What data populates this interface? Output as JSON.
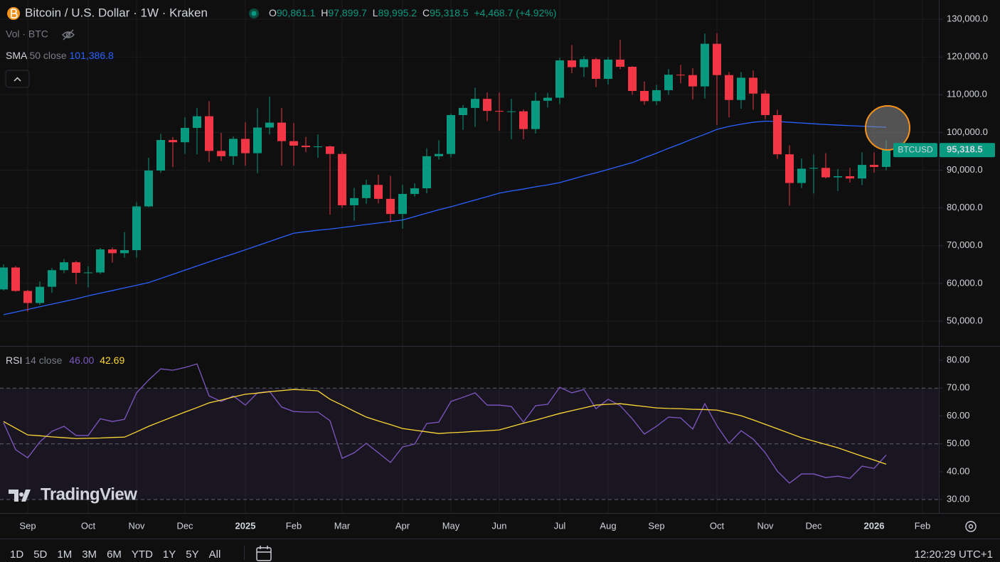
{
  "header": {
    "symbol": "Bitcoin / U.S. Dollar · 1W · Kraken",
    "ohlc": [
      {
        "key": "O",
        "label": "90,861.1"
      },
      {
        "key": "H",
        "label": "97,899.7"
      },
      {
        "key": "L",
        "label": "89,995.2"
      },
      {
        "key": "C",
        "label": "95,318.5"
      }
    ],
    "change": "+4,468.7 (+4.92%)",
    "volume": "Vol · BTC"
  },
  "brand": "TradingView",
  "toolbar": {
    "ranges": [
      "1D",
      "5D",
      "1M",
      "3M",
      "6M",
      "YTD",
      "1Y",
      "5Y",
      "All"
    ],
    "clock": "12:20:29 UTC+1"
  },
  "chart_data": [
    {
      "type": "candlestick",
      "title": "Bitcoin / U.S. Dollar · 1W · Kraken",
      "categories": [
        null,
        null,
        "Sep",
        null,
        null,
        null,
        null,
        "Oct",
        null,
        null,
        null,
        "Nov",
        null,
        null,
        null,
        "Dec",
        null,
        null,
        null,
        null,
        "2025",
        null,
        null,
        null,
        "Feb",
        null,
        null,
        null,
        "Mar",
        null,
        null,
        null,
        null,
        "Apr",
        null,
        null,
        null,
        "May",
        null,
        null,
        null,
        "Jun",
        null,
        null,
        null,
        null,
        "Jul",
        null,
        null,
        null,
        "Aug",
        null,
        null,
        null,
        "Sep",
        null,
        null,
        null,
        null,
        "Oct",
        null,
        null,
        null,
        "Nov",
        null,
        null,
        null,
        "Dec",
        null,
        null,
        null,
        null,
        "2026",
        null,
        null,
        null,
        "Feb"
      ],
      "series": [
        {
          "name": "BTCUSD",
          "up_color": "#089981",
          "down_color": "#f23645",
          "last_label": "95,318.5",
          "open": [
            58400,
            64200,
            58000,
            54800,
            59100,
            63500,
            65600,
            62800,
            62900,
            69000,
            68000,
            68800,
            80400,
            89900,
            98000,
            97400,
            101200,
            104300,
            95100,
            93700,
            98300,
            94500,
            101300,
            102600,
            97700,
            96500,
            96100,
            96300,
            94300,
            80700,
            82600,
            86100,
            82400,
            78400,
            83700,
            85200,
            93700,
            94300,
            104600,
            106500,
            108900,
            105700,
            105500,
            105600,
            100900,
            108400,
            109200,
            119100,
            117300,
            119400,
            114200,
            119300,
            117400,
            111000,
            108300,
            111200,
            115300,
            115200,
            112200,
            123500,
            115200,
            108600,
            114500,
            110300,
            104600,
            94200,
            86600,
            90400,
            90600,
            88100,
            88400,
            87800,
            91400,
            90861.1,
            null,
            null,
            null
          ],
          "high": [
            65000,
            64600,
            58300,
            60500,
            64100,
            66500,
            66000,
            64500,
            69400,
            69500,
            73600,
            81500,
            93300,
            99600,
            98800,
            104000,
            106500,
            108300,
            99900,
            99000,
            102700,
            106400,
            109500,
            106500,
            102500,
            98800,
            99500,
            96500,
            95000,
            85300,
            87500,
            88800,
            88500,
            86100,
            86500,
            95800,
            97900,
            105000,
            107300,
            111900,
            110600,
            110600,
            108900,
            106100,
            110600,
            110500,
            119800,
            123200,
            120200,
            119800,
            120000,
            124500,
            117600,
            113500,
            112600,
            116800,
            117900,
            117000,
            126200,
            126300,
            116000,
            116000,
            116400,
            111200,
            106000,
            96600,
            93100,
            94200,
            94500,
            90300,
            90600,
            94700,
            94700,
            97899.7,
            null,
            null,
            null
          ],
          "low": [
            58100,
            57800,
            52500,
            54300,
            57500,
            62700,
            59800,
            58900,
            62500,
            65500,
            66800,
            66800,
            80200,
            89300,
            90800,
            94300,
            94200,
            92200,
            92400,
            91400,
            91200,
            89200,
            99500,
            91200,
            91200,
            94800,
            93300,
            78200,
            80000,
            76600,
            81100,
            81200,
            76200,
            74500,
            83000,
            83900,
            92800,
            93400,
            100700,
            101500,
            103000,
            100400,
            98200,
            98200,
            99700,
            106600,
            107500,
            115700,
            114700,
            112000,
            112700,
            116800,
            110000,
            107300,
            107300,
            110000,
            113000,
            108700,
            109000,
            102000,
            104000,
            106300,
            106000,
            103500,
            93000,
            80600,
            85300,
            83800,
            87800,
            84500,
            86700,
            86000,
            89300,
            89995.2,
            null,
            null,
            null
          ],
          "close": [
            64200,
            58000,
            54800,
            59100,
            63500,
            65600,
            62800,
            62900,
            69000,
            68000,
            68800,
            80400,
            89900,
            98000,
            97400,
            101200,
            104300,
            95100,
            93700,
            98300,
            94500,
            101300,
            102600,
            97700,
            96500,
            96100,
            96300,
            94300,
            80700,
            82600,
            86100,
            82400,
            78400,
            83700,
            85200,
            93700,
            94300,
            104600,
            106500,
            108900,
            105700,
            105500,
            105600,
            100900,
            108400,
            109200,
            119100,
            117300,
            119400,
            114200,
            119300,
            117400,
            111000,
            108300,
            111200,
            115300,
            115200,
            112200,
            123500,
            115200,
            108600,
            114500,
            110300,
            104600,
            94200,
            86600,
            90400,
            90600,
            88100,
            88400,
            87800,
            91400,
            90850,
            95318.5,
            null,
            null,
            null
          ]
        }
      ],
      "indicators": [
        {
          "name": "SMA",
          "params": "50 close",
          "color": "#2962ff",
          "value_label": "101,386.8",
          "values": [
            51700,
            52400,
            53100,
            53800,
            54500,
            55200,
            55900,
            56700,
            57400,
            58100,
            58800,
            59500,
            60200,
            61300,
            62400,
            63500,
            64600,
            65700,
            66800,
            67800,
            68900,
            70000,
            71100,
            72200,
            73300,
            73700,
            74100,
            74400,
            74800,
            75200,
            75600,
            76000,
            76400,
            76800,
            77700,
            78600,
            79500,
            80300,
            81200,
            82100,
            83000,
            83900,
            84500,
            85000,
            85600,
            86100,
            86700,
            87600,
            88500,
            89300,
            90200,
            91100,
            92000,
            93300,
            94500,
            95800,
            97000,
            98300,
            99500,
            100800,
            101600,
            102200,
            102700,
            103000,
            102900,
            102700,
            102500,
            102300,
            102100,
            101950,
            101800,
            101650,
            101500,
            101386.8,
            null,
            null,
            null
          ]
        }
      ],
      "ylim": [
        43400,
        135100
      ],
      "yticks": [
        {
          "value": 50000,
          "label": "50,000.0"
        },
        {
          "value": 60000,
          "label": "60,000.0"
        },
        {
          "value": 70000,
          "label": "70,000.0"
        },
        {
          "value": 80000,
          "label": "80,000.0"
        },
        {
          "value": 90000,
          "label": "90,000.0"
        },
        {
          "value": 100000,
          "label": "100,000.0"
        },
        {
          "value": 110000,
          "label": "110,000.0"
        },
        {
          "value": 120000,
          "label": "120,000.0"
        },
        {
          "value": 130000,
          "label": "130,000.0"
        }
      ],
      "grid": true
    },
    {
      "type": "line",
      "title": "RSI",
      "subtitle": "14 close",
      "series": [
        {
          "color": "#7e57c2",
          "value_label": "46.00",
          "values": [
            57.6,
            47.9,
            45,
            50.7,
            54.5,
            56.3,
            53,
            53,
            59,
            58,
            58.8,
            68.3,
            72.9,
            76.9,
            76.4,
            77.4,
            78.7,
            67.2,
            65.2,
            67.2,
            63.9,
            68.3,
            68.8,
            63.2,
            61.6,
            61.4,
            61.4,
            58.3,
            44.8,
            46.8,
            50.2,
            46.8,
            43.3,
            48.9,
            49.9,
            57.3,
            57.8,
            65.2,
            66.7,
            68.3,
            63.9,
            63.9,
            63.4,
            57.8,
            63.7,
            64.2,
            70.3,
            68.3,
            69.5,
            62.6,
            66,
            63.7,
            59,
            53.5,
            56.3,
            59.6,
            59.3,
            55.3,
            64.4,
            56.5,
            50.2,
            54.7,
            51.7,
            46.8,
            40.2,
            35.9,
            39.2,
            39.2,
            37.9,
            38.4,
            37.6,
            42,
            41.2,
            46,
            null,
            null,
            null
          ]
        },
        {
          "color": "#fdd835",
          "value_label": "42.69",
          "values": [
            58,
            55.6,
            53.2,
            52.9,
            52.5,
            52.2,
            51.9,
            52,
            52.1,
            52.3,
            52.4,
            54.3,
            56.3,
            58,
            59.7,
            61.4,
            63,
            64.7,
            65.7,
            66.8,
            67.8,
            68.2,
            68.7,
            69.1,
            69.5,
            69.3,
            69,
            66,
            63.9,
            61.7,
            59.6,
            58.2,
            56.9,
            55.5,
            54.9,
            54.3,
            53.7,
            54,
            54.2,
            54.5,
            54.7,
            55,
            56.2,
            57.4,
            58.5,
            59.7,
            60.9,
            61.9,
            62.9,
            63.9,
            64.2,
            64.4,
            63.9,
            63.4,
            62.9,
            62.7,
            62.6,
            62.4,
            62.3,
            62.1,
            61.1,
            60.1,
            58.6,
            57,
            55.4,
            53.8,
            52.2,
            51,
            49.8,
            48.6,
            47.1,
            45.6,
            44.2,
            42.69,
            null,
            null,
            null
          ]
        }
      ],
      "ylim": [
        25.2,
        85.1
      ],
      "yticks": [
        {
          "value": 30,
          "label": "30.00"
        },
        {
          "value": 40,
          "label": "40.00"
        },
        {
          "value": 50,
          "label": "50.00"
        },
        {
          "value": 60,
          "label": "60.00"
        },
        {
          "value": 70,
          "label": "70.00"
        },
        {
          "value": 80,
          "label": "80.00"
        }
      ],
      "band": [
        70,
        30
      ],
      "hlines": [
        70,
        50,
        30
      ]
    }
  ]
}
